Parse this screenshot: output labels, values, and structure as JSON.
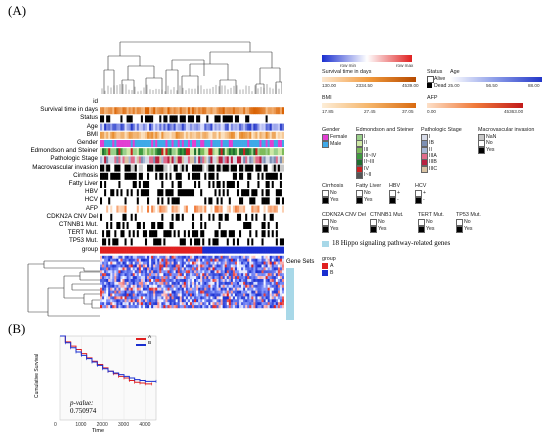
{
  "panels": {
    "a": "(A)",
    "b": "(B)"
  },
  "tracks": [
    {
      "label": "id"
    },
    {
      "label": "Survival time in days"
    },
    {
      "label": "Status"
    },
    {
      "label": "Age"
    },
    {
      "label": "BMI"
    },
    {
      "label": "Gender"
    },
    {
      "label": "Edmondson and Steiner"
    },
    {
      "label": "Pathologic Stage"
    },
    {
      "label": "Macrovascular invasion"
    },
    {
      "label": "Cirrhosis"
    },
    {
      "label": "Fatty Liver"
    },
    {
      "label": "HBV"
    },
    {
      "label": "HCV"
    },
    {
      "label": "AFP"
    },
    {
      "label": "CDKN2A CNV Del"
    },
    {
      "label": "CTNNB1 Mut."
    },
    {
      "label": "TERT Mut."
    },
    {
      "label": "TP53 Mut."
    },
    {
      "label": "group"
    }
  ],
  "gene_sets_label": "Gene Sets",
  "rowscale": {
    "min": "row min",
    "max": "row max"
  },
  "survival": {
    "title": "Survival time in days",
    "min": "130.00",
    "mid": "2334.50",
    "max": "4539.00"
  },
  "status": {
    "title": "Status",
    "alive": "Alive",
    "dead": "Dead"
  },
  "age": {
    "title": "Age",
    "min": "25.00",
    "mid": "56.50",
    "max": "88.00"
  },
  "bmi": {
    "title": "BMI",
    "min": "17.85",
    "mid": "27.45",
    "max": "37.05"
  },
  "afp": {
    "title": "AFP",
    "min": "0.00",
    "max": "45363.00"
  },
  "gender": {
    "title": "Gender",
    "items": [
      "Female",
      "Male"
    ],
    "colors": [
      "#e23fd2",
      "#3fa9e8"
    ]
  },
  "edmondson": {
    "title": "Edmondson and Steiner",
    "items": [
      "I",
      "II",
      "III",
      "III~IV",
      "II~III",
      "IV",
      "I~II"
    ],
    "colors": [
      "#9ad08b",
      "#cfe8a6",
      "#7dbb5a",
      "#3f9a3f",
      "#1f6f2f",
      "#cc2020",
      "#555555"
    ]
  },
  "pathologic": {
    "title": "Pathologic Stage",
    "items": [
      "I",
      "IB",
      "II",
      "IIIA",
      "IIIB",
      "IIIC"
    ],
    "colors": [
      "#d7dbe8",
      "#7c8fb3",
      "#a7b7d6",
      "#e06b8b",
      "#b8203f",
      "#d9c2a3"
    ]
  },
  "macro": {
    "title": "Macrovascular invasion",
    "items": [
      "NaN",
      "No",
      "Yes"
    ],
    "colors": [
      "#c8c8c8",
      "#ffffff",
      "#000000"
    ]
  },
  "cirrhosis": {
    "title": "Cirrhosis",
    "items": [
      "No",
      "Yes"
    ]
  },
  "fatty": {
    "title": "Fatty Liver",
    "items": [
      "No",
      "Yes"
    ]
  },
  "hbv": {
    "title": "HBV",
    "items": [
      "+",
      "-"
    ]
  },
  "hcv": {
    "title": "HCV",
    "items": [
      "+",
      "-"
    ]
  },
  "cdkn2a": {
    "title": "CDKN2A CNV Del",
    "items": [
      "No",
      "Yes"
    ]
  },
  "ctnnb1": {
    "title": "CTNNB1 Mut.",
    "items": [
      "No",
      "Yes"
    ]
  },
  "tert": {
    "title": "TERT Mut.",
    "items": [
      "No",
      "Yes"
    ]
  },
  "tp53": {
    "title": "TP53 Mut.",
    "items": [
      "No",
      "Yes"
    ]
  },
  "hippo": {
    "label": "18 Hippo signaling pathway-related genes",
    "color": "#a8d8e8"
  },
  "group_legend": {
    "title": "group",
    "items": [
      "A",
      "B"
    ],
    "colors": [
      "#e02020",
      "#1a2fd0"
    ]
  },
  "chart_data": {
    "type": "line",
    "title": "",
    "xlabel": "Time",
    "ylabel": "Cumulative Survival",
    "xlim": [
      0,
      4500
    ],
    "ylim": [
      0,
      1
    ],
    "x_ticks": [
      "0",
      "1000",
      "2000",
      "3000",
      "4000"
    ],
    "legend": "top-right",
    "annotation": {
      "label": "p-value:",
      "value": "0.750974"
    },
    "series": [
      {
        "name": "A",
        "color": "#e02020",
        "points": [
          [
            0,
            1.0
          ],
          [
            250,
            0.93
          ],
          [
            500,
            0.88
          ],
          [
            750,
            0.84
          ],
          [
            1000,
            0.79
          ],
          [
            1250,
            0.74
          ],
          [
            1500,
            0.7
          ],
          [
            1750,
            0.66
          ],
          [
            2000,
            0.62
          ],
          [
            2250,
            0.58
          ],
          [
            2500,
            0.55
          ],
          [
            2750,
            0.52
          ],
          [
            3000,
            0.5
          ],
          [
            3250,
            0.47
          ],
          [
            3500,
            0.45
          ],
          [
            3750,
            0.44
          ],
          [
            4000,
            0.43
          ],
          [
            4300,
            0.43
          ]
        ]
      },
      {
        "name": "B",
        "color": "#1a2fd0",
        "points": [
          [
            0,
            1.0
          ],
          [
            250,
            0.92
          ],
          [
            500,
            0.86
          ],
          [
            750,
            0.81
          ],
          [
            1000,
            0.77
          ],
          [
            1250,
            0.73
          ],
          [
            1500,
            0.69
          ],
          [
            1750,
            0.65
          ],
          [
            2000,
            0.61
          ],
          [
            2250,
            0.58
          ],
          [
            2500,
            0.56
          ],
          [
            2750,
            0.54
          ],
          [
            3000,
            0.52
          ],
          [
            3250,
            0.5
          ],
          [
            3500,
            0.48
          ],
          [
            3750,
            0.47
          ],
          [
            4000,
            0.46
          ],
          [
            4500,
            0.46
          ]
        ]
      }
    ]
  }
}
